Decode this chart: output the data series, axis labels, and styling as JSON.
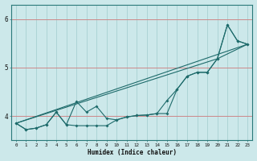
{
  "xlabel": "Humidex (Indice chaleur)",
  "ylabel": "",
  "xlim": [
    -0.5,
    23.5
  ],
  "ylim": [
    3.5,
    6.3
  ],
  "yticks": [
    4,
    5,
    6
  ],
  "ytick_labels": [
    "4",
    "5",
    "6"
  ],
  "xticks": [
    0,
    1,
    2,
    3,
    4,
    5,
    6,
    7,
    8,
    9,
    10,
    11,
    12,
    13,
    14,
    15,
    16,
    17,
    18,
    19,
    20,
    21,
    22,
    23
  ],
  "bg_color": "#cce8ea",
  "line_color": "#1e6b6b",
  "grid_h_color": "#cc8888",
  "grid_v_color": "#a0cccc",
  "series": [
    {
      "x": [
        0,
        1,
        2,
        3,
        4,
        5,
        6,
        7,
        8,
        9,
        10,
        11,
        12,
        13,
        14,
        15,
        16,
        17,
        18,
        19,
        20,
        21,
        22,
        23
      ],
      "y": [
        3.85,
        3.72,
        3.75,
        3.82,
        4.08,
        3.82,
        3.8,
        3.8,
        3.8,
        3.8,
        3.92,
        3.98,
        4.01,
        4.02,
        4.05,
        4.05,
        4.55,
        4.82,
        4.9,
        4.9,
        5.18,
        5.88,
        5.55,
        5.48
      ],
      "marker": true
    },
    {
      "x": [
        0,
        1,
        2,
        3,
        4,
        5,
        6,
        7,
        8,
        9,
        10,
        11,
        12,
        13,
        14,
        15,
        16,
        17,
        18,
        19,
        20,
        21,
        22,
        23
      ],
      "y": [
        3.85,
        3.72,
        3.75,
        3.82,
        4.08,
        3.82,
        4.3,
        4.08,
        4.2,
        3.95,
        3.92,
        3.98,
        4.01,
        4.02,
        4.05,
        4.32,
        4.55,
        4.82,
        4.9,
        4.9,
        5.18,
        5.88,
        5.55,
        5.48
      ],
      "marker": true
    },
    {
      "x": [
        0,
        23
      ],
      "y": [
        3.85,
        5.48
      ],
      "marker": false
    },
    {
      "x": [
        0,
        20,
        23
      ],
      "y": [
        3.85,
        5.18,
        5.48
      ],
      "marker": false
    }
  ]
}
